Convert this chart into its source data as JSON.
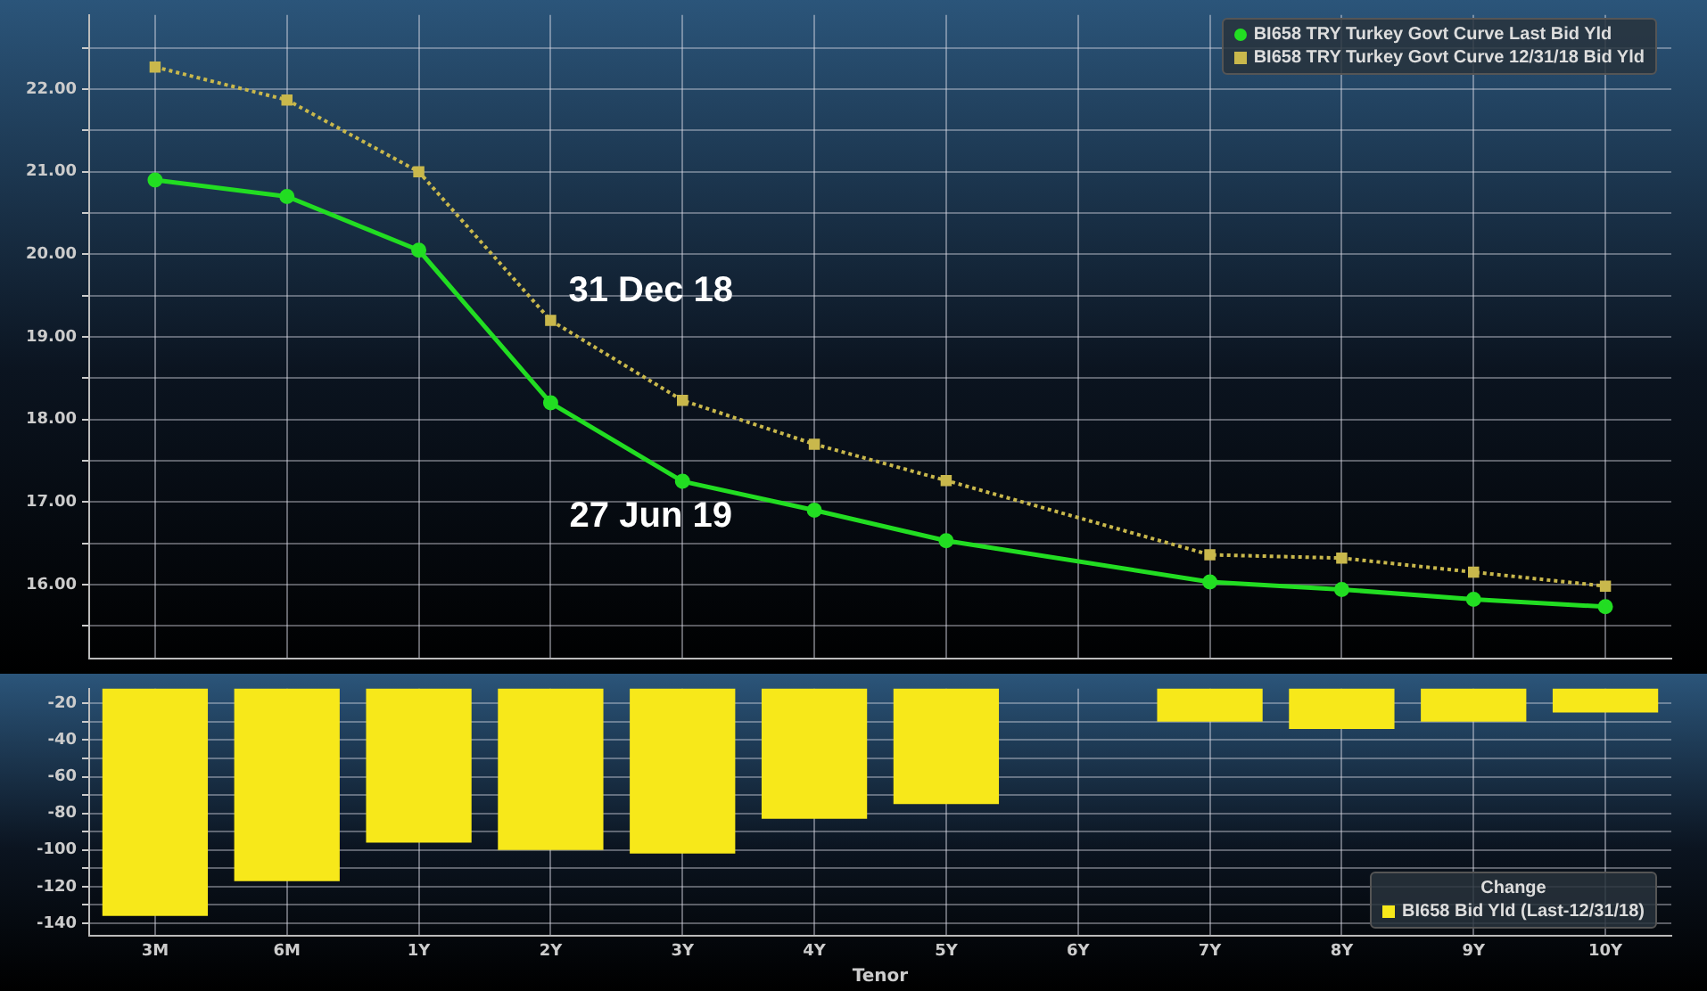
{
  "chart_data": [
    {
      "type": "line",
      "categories": [
        null,
        null,
        null,
        null,
        null,
        null,
        null,
        null,
        null,
        null,
        null,
        null
      ],
      "series": [
        {
          "name": "BI658 TRY Turkey Govt Curve Last Bid Yld",
          "color": "#22dd22",
          "marker": "circle",
          "line_style": "solid",
          "values": [
            20.9,
            20.7,
            20.05,
            18.2,
            17.25,
            16.9,
            16.53,
            null,
            16.03,
            15.94,
            15.82,
            15.73
          ]
        },
        {
          "name": "BI658 TRY Turkey Govt Curve 12/31/18 Bid Yld",
          "color": "#c9b84c",
          "marker": "square",
          "line_style": "dotted",
          "values": [
            22.27,
            21.87,
            21.0,
            19.2,
            18.23,
            17.7,
            17.26,
            null,
            16.36,
            16.32,
            16.15,
            15.98
          ]
        }
      ],
      "ylim": [
        15.1,
        22.9
      ],
      "yticks": [
        {
          "value": 15.5,
          "label": null
        },
        {
          "value": 16,
          "label": "16.00"
        },
        {
          "value": 16.5,
          "label": null
        },
        {
          "value": 17,
          "label": "17.00"
        },
        {
          "value": 17.5,
          "label": null
        },
        {
          "value": 18,
          "label": "18.00"
        },
        {
          "value": 18.5,
          "label": null
        },
        {
          "value": 19,
          "label": "19.00"
        },
        {
          "value": 19.5,
          "label": null
        },
        {
          "value": 20,
          "label": "20.00"
        },
        {
          "value": 20.5,
          "label": null
        },
        {
          "value": 21,
          "label": "21.00"
        },
        {
          "value": 21.5,
          "label": null
        },
        {
          "value": 22,
          "label": "22.00"
        },
        {
          "value": 22.5,
          "label": null
        }
      ],
      "grid": true,
      "legend": "top right",
      "tick_labels": "y",
      "annotations": [
        "31 Dec 18",
        "27 Jun 19"
      ]
    },
    {
      "type": "bar",
      "categories": [
        "3M",
        "6M",
        "1Y",
        "2Y",
        "3Y",
        "4Y",
        "5Y",
        "6Y",
        "7Y",
        "8Y",
        "9Y",
        "10Y"
      ],
      "series": [
        {
          "name": "BI658 Bid Yld (Last-12/31/18)",
          "color": "#f7e81a",
          "values": [
            -136,
            -117,
            -96,
            -100,
            -102,
            -83,
            -75,
            null,
            -30,
            -34,
            -30,
            -25
          ]
        }
      ],
      "legend_title": "Change",
      "xlabel": "Tenor",
      "ylim": [
        -147,
        -12
      ],
      "yticks": [
        -140,
        {
          "value": -130,
          "label": null
        },
        -120,
        {
          "value": -110,
          "label": null
        },
        -100,
        {
          "value": -90,
          "label": null
        },
        -80,
        {
          "value": -70,
          "label": null
        },
        -60,
        {
          "value": -50,
          "label": null
        },
        -40,
        {
          "value": -30,
          "label": null
        },
        -20
      ],
      "grid": true,
      "legend": "bottom right"
    }
  ]
}
